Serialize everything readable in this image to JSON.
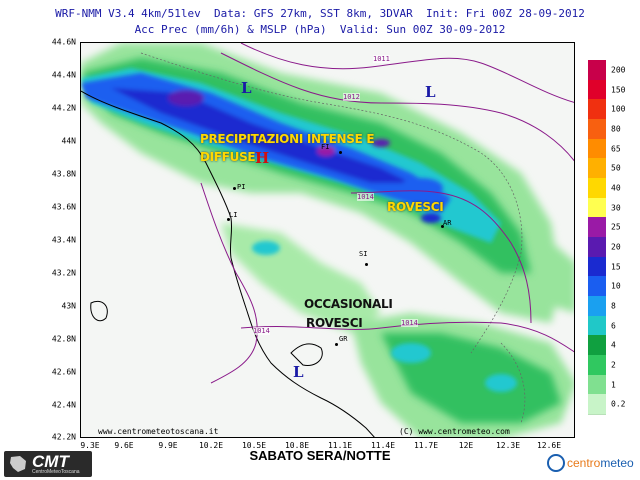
{
  "header": {
    "line1": "WRF-NMM V3.4 4km/51lev  Data: GFS 27km, SST 8km, 3DVAR  Init: Fri 00Z 28-09-2012",
    "line2": "Acc Prec (mm/6h) & MSLP (hPa)  Valid: Sun 00Z 30-09-2012"
  },
  "axes": {
    "lat_labels": [
      "44.6N",
      "44.4N",
      "44.2N",
      "44N",
      "43.8N",
      "43.6N",
      "43.4N",
      "43.2N",
      "43N",
      "42.8N",
      "42.6N",
      "42.4N",
      "42.2N"
    ],
    "lon_labels": [
      "9.3E",
      "9.6E",
      "9.9E",
      "10.2E",
      "10.5E",
      "10.8E",
      "11.1E",
      "11.4E",
      "11.7E",
      "12E",
      "12.3E",
      "12.6E"
    ]
  },
  "annotations": {
    "intense_line1": "PRECIPITAZIONI INTENSE E",
    "intense_line2": "DIFFUSE",
    "rovesci": "ROVESCI",
    "occasionali_line1": "OCCASIONALI",
    "occasionali_line2": "ROVESCI"
  },
  "pressure_centers": {
    "low": "L",
    "high": "H"
  },
  "isobars": [
    "1011",
    "1012",
    "1014",
    "1014",
    "1014"
  ],
  "cities": [
    "FI",
    "PI",
    "LI",
    "SI",
    "GR",
    "AR"
  ],
  "credits": {
    "left": "www.centrometeotoscana.it",
    "right": "(C) www.centrometeo.com"
  },
  "legend": {
    "values": [
      "200",
      "150",
      "100",
      "80",
      "65",
      "50",
      "40",
      "30",
      "25",
      "20",
      "15",
      "10",
      "8",
      "6",
      "4",
      "2",
      "1",
      "0.2"
    ],
    "colors": [
      "#c8004a",
      "#e0002a",
      "#f03010",
      "#f86010",
      "#ff8c00",
      "#ffb000",
      "#ffd800",
      "#ffff50",
      "#9a1aa6",
      "#5a1ab0",
      "#1a2ad0",
      "#1a5ef0",
      "#1aa0f0",
      "#20c8c8",
      "#10a040",
      "#30c860",
      "#80e090",
      "#c8f4c8"
    ]
  },
  "footer": {
    "title": "SABATO SERA/NOTTE"
  },
  "logos": {
    "cmt_big": "CMT",
    "cmt_small": "CentroMeteoToscana",
    "cm_prefix": "centro",
    "cm_suffix": "meteo"
  }
}
